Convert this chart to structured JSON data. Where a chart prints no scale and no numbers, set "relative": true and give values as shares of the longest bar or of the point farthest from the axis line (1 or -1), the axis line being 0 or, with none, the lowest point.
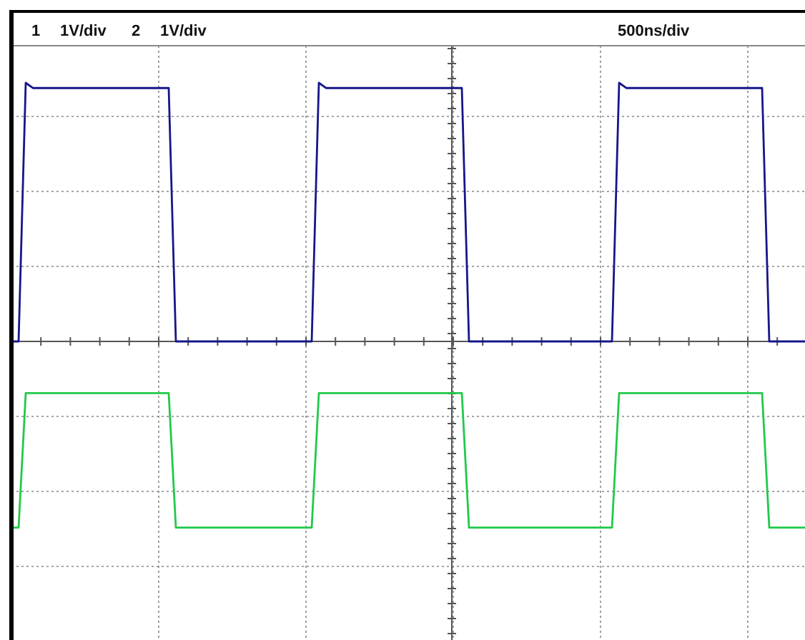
{
  "chart_data": {
    "type": "line",
    "relative": true,
    "grid": true,
    "annotations": [
      "1",
      "1V/div",
      "2",
      "1V/div",
      "500ns/div"
    ],
    "categories": [
      null,
      null,
      null,
      null,
      null,
      null,
      null,
      null,
      null,
      null,
      null,
      null,
      null,
      null,
      null,
      null,
      null,
      null,
      null,
      null,
      null,
      null,
      null,
      null,
      null,
      null,
      null,
      null,
      null,
      null,
      null,
      null,
      null,
      null,
      null,
      null,
      null,
      null,
      null,
      null,
      null,
      null,
      null,
      null,
      null,
      null,
      null,
      null,
      null,
      null,
      null,
      null,
      null,
      null,
      null,
      null,
      null,
      null,
      null,
      null,
      null,
      null,
      null,
      null,
      null,
      null,
      null,
      null,
      null,
      null,
      null,
      null,
      null,
      null,
      null,
      null,
      null,
      null,
      null,
      null,
      null,
      null,
      null,
      null,
      null,
      null,
      null,
      null,
      null,
      null,
      null,
      null,
      null,
      null,
      null,
      null,
      null,
      null,
      null,
      null,
      null,
      null,
      null,
      null,
      null,
      null,
      null,
      null,
      null,
      null,
      null,
      null
    ],
    "series": [
      {
        "color": "#16168a",
        "values": [
          0,
          0,
          1,
          0.98,
          0.98,
          0.98,
          0.98,
          0.98,
          0.98,
          0.98,
          0.98,
          0.98,
          0.98,
          0.98,
          0.98,
          0.98,
          0.98,
          0.98,
          0.98,
          0.98,
          0.98,
          0.98,
          0.98,
          0,
          0,
          0,
          0,
          0,
          0,
          0,
          0,
          0,
          0,
          0,
          0,
          0,
          0,
          0,
          0,
          0,
          0,
          0,
          0,
          1,
          0.98,
          0.98,
          0.98,
          0.98,
          0.98,
          0.98,
          0.98,
          0.98,
          0.98,
          0.98,
          0.98,
          0.98,
          0.98,
          0.98,
          0.98,
          0.98,
          0.98,
          0.98,
          0.98,
          0.98,
          0,
          0,
          0,
          0,
          0,
          0,
          0,
          0,
          0,
          0,
          0,
          0,
          0,
          0,
          0,
          0,
          0,
          0,
          0,
          0,
          0,
          1,
          0.98,
          0.98,
          0.98,
          0.98,
          0.98,
          0.98,
          0.98,
          0.98,
          0.98,
          0.98,
          0.98,
          0.98,
          0.98,
          0.98,
          0.98,
          0.98,
          0.98,
          0.98,
          0.98,
          0.98,
          0,
          0,
          0,
          0,
          0,
          0
        ]
      },
      {
        "color": "#22c94a",
        "values": [
          -0.72,
          -0.72,
          -0.2,
          -0.2,
          -0.2,
          -0.2,
          -0.2,
          -0.2,
          -0.2,
          -0.2,
          -0.2,
          -0.2,
          -0.2,
          -0.2,
          -0.2,
          -0.2,
          -0.2,
          -0.2,
          -0.2,
          -0.2,
          -0.2,
          -0.2,
          -0.2,
          -0.72,
          -0.72,
          -0.72,
          -0.72,
          -0.72,
          -0.72,
          -0.72,
          -0.72,
          -0.72,
          -0.72,
          -0.72,
          -0.72,
          -0.72,
          -0.72,
          -0.72,
          -0.72,
          -0.72,
          -0.72,
          -0.72,
          -0.72,
          -0.2,
          -0.2,
          -0.2,
          -0.2,
          -0.2,
          -0.2,
          -0.2,
          -0.2,
          -0.2,
          -0.2,
          -0.2,
          -0.2,
          -0.2,
          -0.2,
          -0.2,
          -0.2,
          -0.2,
          -0.2,
          -0.2,
          -0.2,
          -0.2,
          -0.72,
          -0.72,
          -0.72,
          -0.72,
          -0.72,
          -0.72,
          -0.72,
          -0.72,
          -0.72,
          -0.72,
          -0.72,
          -0.72,
          -0.72,
          -0.72,
          -0.72,
          -0.72,
          -0.72,
          -0.72,
          -0.72,
          -0.72,
          -0.72,
          -0.2,
          -0.2,
          -0.2,
          -0.2,
          -0.2,
          -0.2,
          -0.2,
          -0.2,
          -0.2,
          -0.2,
          -0.2,
          -0.2,
          -0.2,
          -0.2,
          -0.2,
          -0.2,
          -0.2,
          -0.2,
          -0.2,
          -0.2,
          -0.2,
          -0.72,
          -0.72,
          -0.72,
          -0.72,
          -0.72,
          -0.72
        ]
      }
    ]
  }
}
